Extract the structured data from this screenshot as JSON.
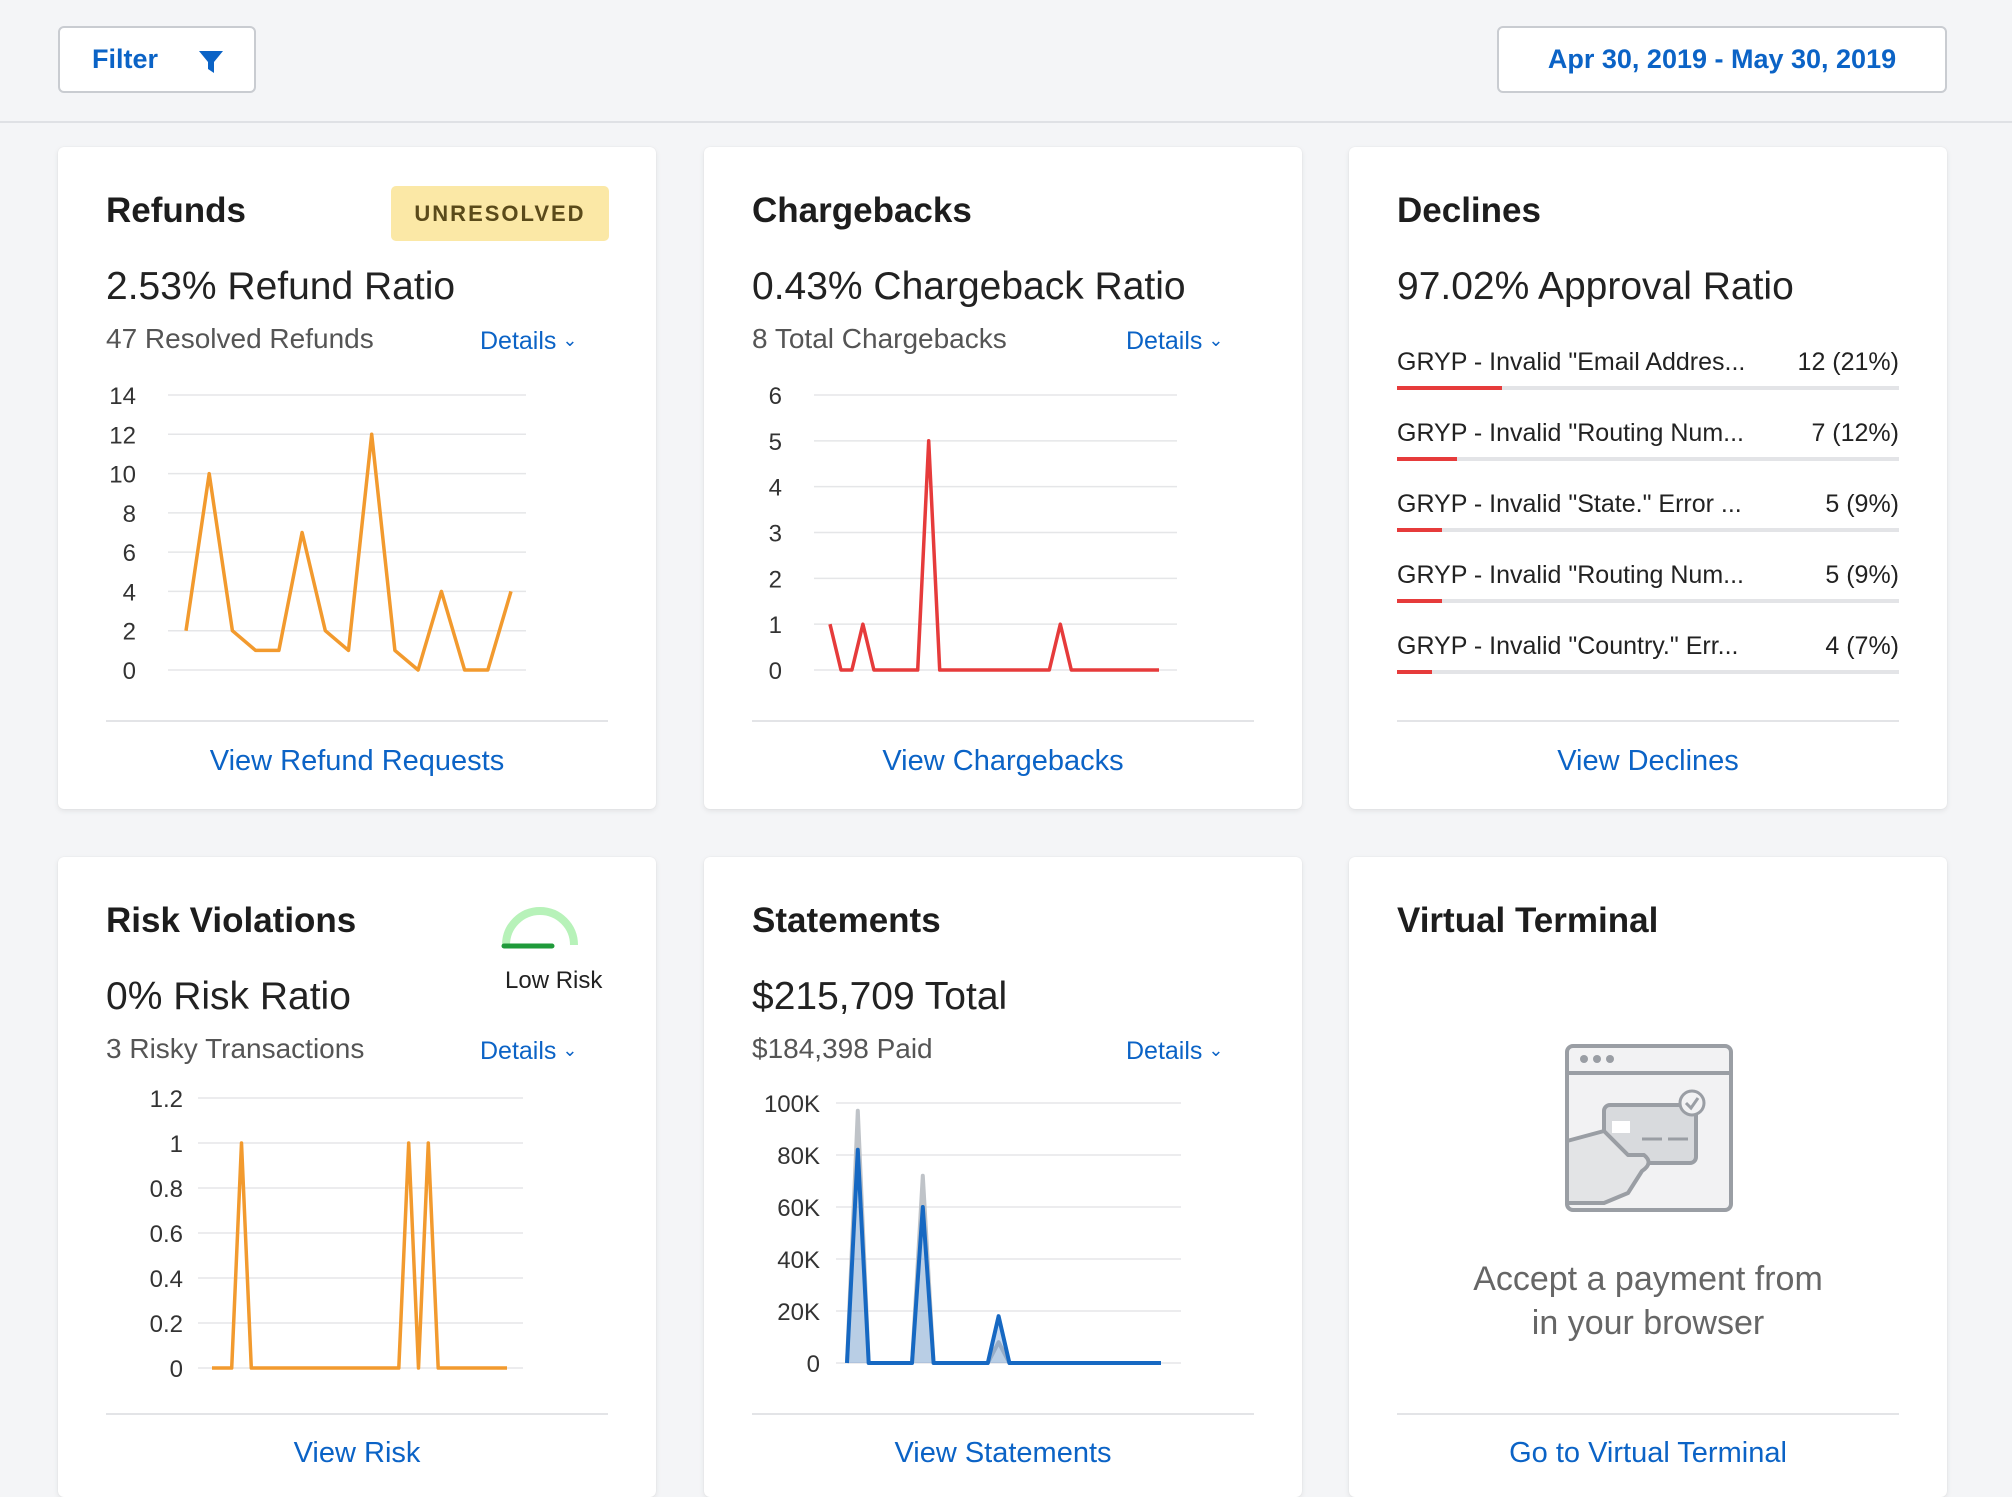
{
  "toolbar": {
    "filter_label": "Filter",
    "date_range": "Apr 30, 2019 - May 30, 2019"
  },
  "refunds": {
    "title": "Refunds",
    "badge": "UNRESOLVED",
    "stat": "2.53% Refund Ratio",
    "sub": "47 Resolved Refunds",
    "details": "Details",
    "link": "View Refund Requests",
    "chart_data": {
      "type": "line",
      "y_ticks": [
        "14",
        "12",
        "10",
        "8",
        "6",
        "4",
        "2",
        "0"
      ],
      "ylim": [
        0,
        14
      ],
      "values": [
        2,
        10,
        2,
        1,
        1,
        7,
        2,
        1,
        12,
        1,
        0,
        4,
        0,
        0,
        4
      ],
      "color": "#f29a2e"
    }
  },
  "chargebacks": {
    "title": "Chargebacks",
    "stat": "0.43% Chargeback Ratio",
    "sub": "8 Total Chargebacks",
    "details": "Details",
    "link": "View Chargebacks",
    "chart_data": {
      "type": "line",
      "y_ticks": [
        "6",
        "5",
        "4",
        "3",
        "2",
        "1",
        "0"
      ],
      "ylim": [
        0,
        6
      ],
      "values": [
        1,
        0,
        0,
        1,
        0,
        0,
        0,
        0,
        0,
        5,
        0,
        0,
        0,
        0,
        0,
        0,
        0,
        0,
        0,
        0,
        0,
        1,
        0,
        0,
        0,
        0,
        0,
        0,
        0,
        0,
        0
      ],
      "color": "#e63b3b"
    }
  },
  "declines": {
    "title": "Declines",
    "stat": "97.02% Approval Ratio",
    "link": "View Declines",
    "rows": [
      {
        "label": "GRYP - Invalid \"Email Addres...",
        "count": "12 (21%)",
        "pct": 21
      },
      {
        "label": "GRYP - Invalid \"Routing Num...",
        "count": "7 (12%)",
        "pct": 12
      },
      {
        "label": "GRYP - Invalid \"State.\" Error ...",
        "count": "5 (9%)",
        "pct": 9
      },
      {
        "label": "GRYP - Invalid \"Routing Num...",
        "count": "5 (9%)",
        "pct": 9
      },
      {
        "label": "GRYP - Invalid \"Country.\" Err...",
        "count": "4 (7%)",
        "pct": 7
      }
    ]
  },
  "risk": {
    "title": "Risk Violations",
    "gauge_label": "Low Risk",
    "stat": "0% Risk Ratio",
    "sub": "3 Risky Transactions",
    "details": "Details",
    "link": "View Risk",
    "chart_data": {
      "type": "line",
      "y_ticks": [
        "1.2",
        "1",
        "0.8",
        "0.6",
        "0.4",
        "0.2",
        "0"
      ],
      "ylim": [
        0,
        1.2
      ],
      "values": [
        0,
        0,
        0,
        1,
        0,
        0,
        0,
        0,
        0,
        0,
        0,
        0,
        0,
        0,
        0,
        0,
        0,
        0,
        0,
        0,
        1,
        0,
        1,
        0,
        0,
        0,
        0,
        0,
        0,
        0,
        0
      ],
      "color": "#f29a2e"
    }
  },
  "statements": {
    "title": "Statements",
    "stat": "$215,709 Total",
    "sub": "$184,398 Paid",
    "details": "Details",
    "link": "View Statements",
    "chart_data": {
      "type": "area",
      "y_ticks": [
        "100K",
        "80K",
        "60K",
        "40K",
        "20K",
        "0"
      ],
      "ylim": [
        0,
        100000
      ],
      "series": [
        {
          "values": [
            0,
            97000,
            0,
            0,
            0,
            0,
            0,
            72000,
            0,
            0,
            0,
            0,
            0,
            0,
            8000,
            0,
            0,
            0,
            0,
            0,
            0,
            0,
            0,
            0,
            0,
            0,
            0,
            0,
            0,
            0
          ],
          "color": "#bfc3c8"
        },
        {
          "values": [
            0,
            82000,
            0,
            0,
            0,
            0,
            0,
            60000,
            0,
            0,
            0,
            0,
            0,
            0,
            18000,
            0,
            0,
            0,
            0,
            0,
            0,
            0,
            0,
            0,
            0,
            0,
            0,
            0,
            0,
            0
          ],
          "color": "#1668c2"
        }
      ]
    }
  },
  "terminal": {
    "title": "Virtual Terminal",
    "line1": "Accept a payment from",
    "line2": "in your browser",
    "link": "Go to Virtual Terminal"
  }
}
